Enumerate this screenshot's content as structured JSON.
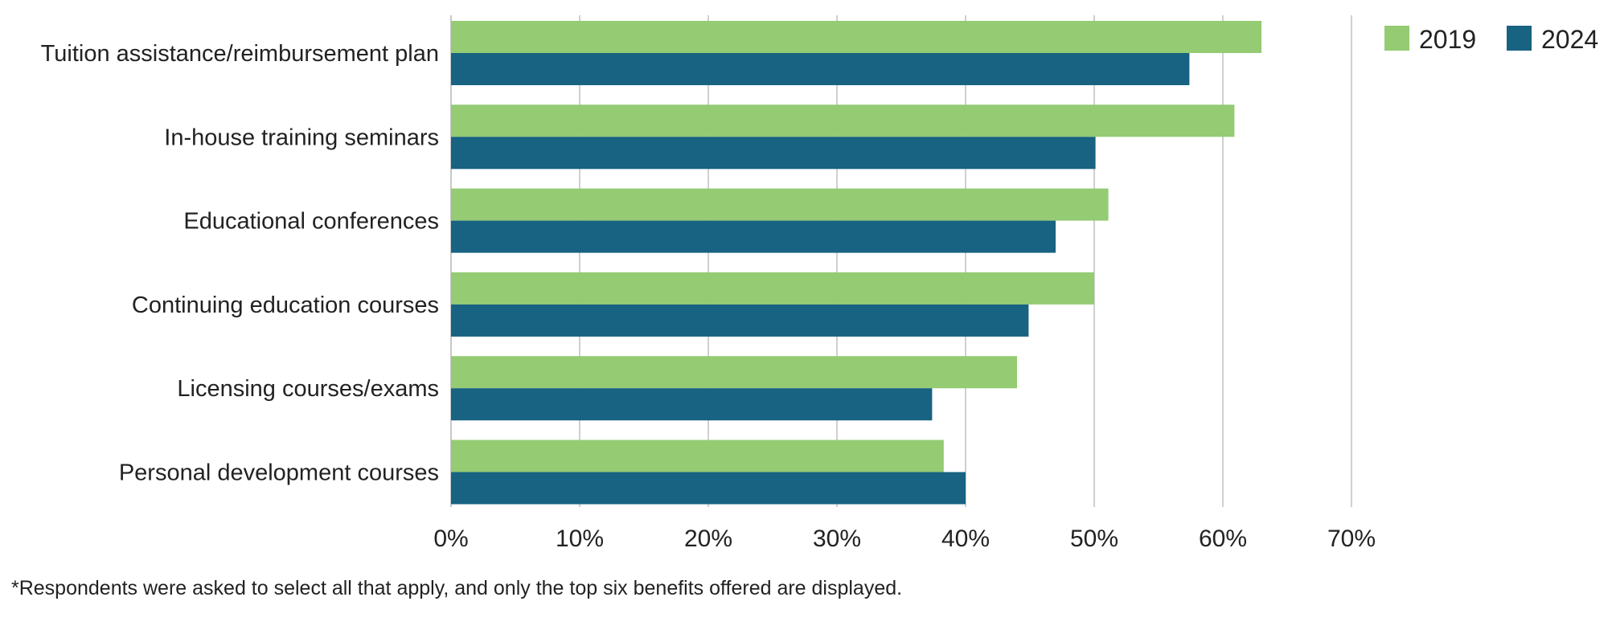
{
  "chart_data": {
    "type": "bar",
    "orientation": "horizontal",
    "categories": [
      "Tuition assistance/reimbursement plan",
      "In-house training seminars",
      "Educational conferences",
      "Continuing education courses",
      "Licensing courses/exams",
      "Personal development courses"
    ],
    "series": [
      {
        "name": "2019",
        "color": "#94CB73",
        "values": [
          63.0,
          60.9,
          51.1,
          50.0,
          44.0,
          38.3
        ]
      },
      {
        "name": "2024",
        "color": "#186282",
        "values": [
          57.4,
          50.1,
          47.0,
          44.9,
          37.4,
          40.0
        ]
      }
    ],
    "xlim": [
      0,
      70
    ],
    "x_ticks": [
      "0%",
      "10%",
      "20%",
      "30%",
      "40%",
      "50%",
      "60%",
      "70%"
    ],
    "grid": "vertical",
    "legend_position": "top-right",
    "footnote": "*Respondents were asked to select all that apply, and only the top six benefits offered are displayed."
  }
}
